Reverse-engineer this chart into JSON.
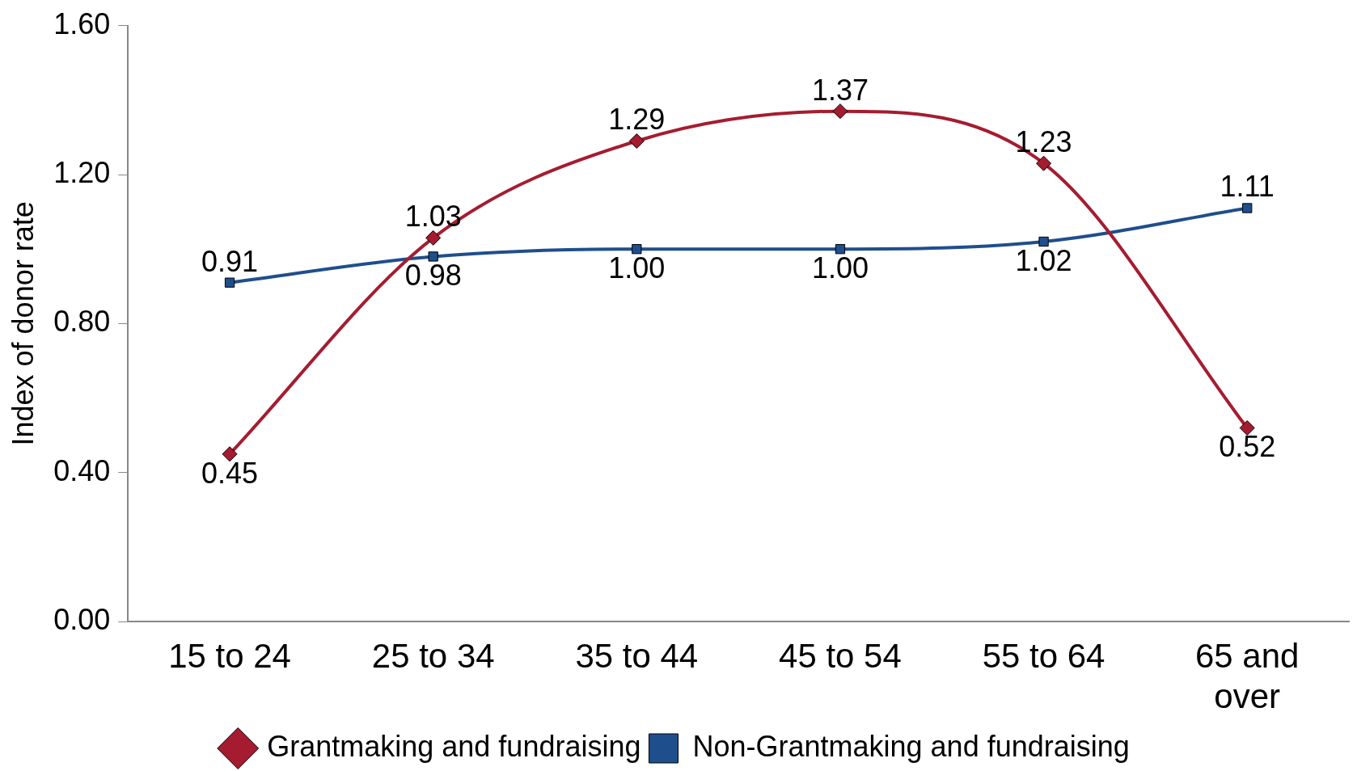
{
  "chart_data": {
    "type": "line",
    "ylabel": "Index of donor rate",
    "categories": [
      "15 to 24",
      "25 to 34",
      "35 to 44",
      "45 to 54",
      "55 to 64",
      "65 and over"
    ],
    "series": [
      {
        "name": "Grantmaking and fundraising",
        "color": "#a51c30",
        "marker": "diamond",
        "values": [
          0.45,
          1.03,
          1.29,
          1.37,
          1.23,
          0.52
        ],
        "value_labels": [
          "0.45",
          "1.03",
          "1.29",
          "1.37",
          "1.23",
          "0.52"
        ]
      },
      {
        "name": "Non-Grantmaking and fundraising",
        "color": "#1f4e8c",
        "marker": "square",
        "values": [
          0.91,
          0.98,
          1.0,
          1.0,
          1.02,
          1.11
        ],
        "value_labels": [
          "0.91",
          "0.98",
          "1.00",
          "1.00",
          "1.02",
          "1.11"
        ]
      }
    ],
    "ylim": [
      0,
      1.6
    ],
    "yticks": [
      {
        "value": 0,
        "label": "0.00"
      },
      {
        "value": 0.4,
        "label": "0.40"
      },
      {
        "value": 0.8,
        "label": "0.80"
      },
      {
        "value": 1.2,
        "label": "1.20"
      },
      {
        "value": 1.6,
        "label": "1.60"
      }
    ],
    "grid": false,
    "legend": "bottom"
  }
}
